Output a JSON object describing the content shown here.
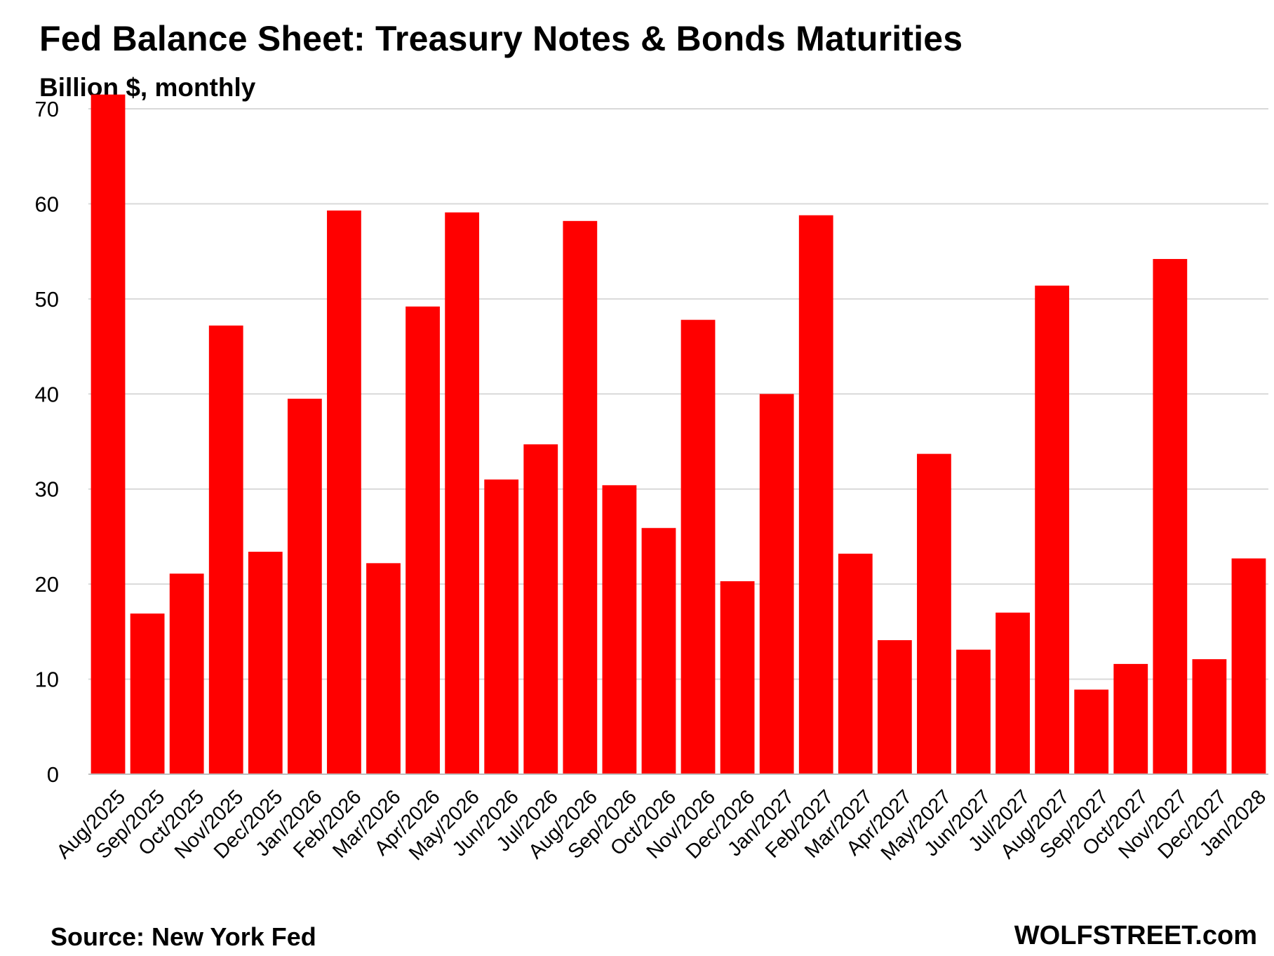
{
  "chart_data": {
    "type": "bar",
    "title": "Fed Balance Sheet: Treasury Notes & Bonds Maturities",
    "subtitle": "Billion $, monthly",
    "xlabel": "",
    "ylabel": "",
    "ylim": [
      0,
      70
    ],
    "yticks": [
      0,
      10,
      20,
      30,
      40,
      50,
      60,
      70
    ],
    "grid": true,
    "legend": "none",
    "bar_color": "#ff0000",
    "categories": [
      "Aug/2025",
      "Sep/2025",
      "Oct/2025",
      "Nov/2025",
      "Dec/2025",
      "Jan/2026",
      "Feb/2026",
      "Mar/2026",
      "Apr/2026",
      "May/2026",
      "Jun/2026",
      "Jul/2026",
      "Aug/2026",
      "Sep/2026",
      "Oct/2026",
      "Nov/2026",
      "Dec/2026",
      "Jan/2027",
      "Feb/2027",
      "Mar/2027",
      "Apr/2027",
      "May/2027",
      "Jun/2027",
      "Jul/2027",
      "Aug/2027",
      "Sep/2027",
      "Oct/2027",
      "Nov/2027",
      "Dec/2027",
      "Jan/2028"
    ],
    "values": [
      71.5,
      16.9,
      21.1,
      47.2,
      23.4,
      39.5,
      59.3,
      22.2,
      49.2,
      59.1,
      31.0,
      34.7,
      58.2,
      30.4,
      25.9,
      47.8,
      20.3,
      40.0,
      58.8,
      23.2,
      14.1,
      33.7,
      13.1,
      17.0,
      51.4,
      8.9,
      11.6,
      54.2,
      12.1,
      22.7
    ]
  },
  "footer": {
    "source": "Source: New York Fed",
    "brand": "WOLFSTREET.com"
  }
}
